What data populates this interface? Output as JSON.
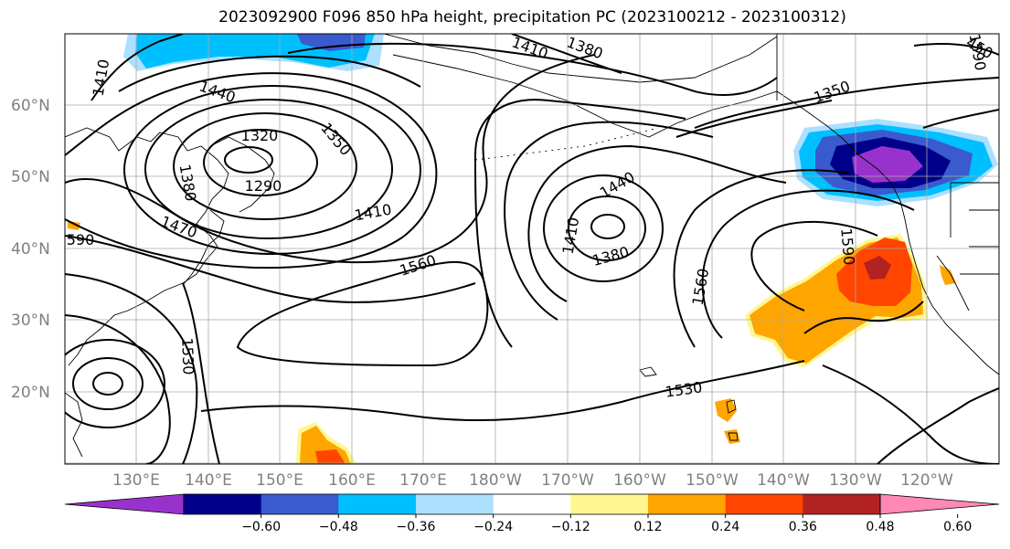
{
  "title": "2023092900 F096 850 hPa height, precipitation PC (2023100212 - 2023100312)",
  "lat_labels": [
    "60°N",
    "50°N",
    "40°N",
    "30°N",
    "20°N"
  ],
  "lon_labels": [
    "130°E",
    "140°E",
    "150°E",
    "160°E",
    "170°E",
    "180°W",
    "170°W",
    "160°W",
    "150°W",
    "140°W",
    "130°W",
    "120°W"
  ],
  "colorbar": {
    "colors": [
      "#9932CC",
      "#00008B",
      "#3A5BCD",
      "#00BFFF",
      "#ADE0FF",
      "#FFFFFF",
      "#FFF68F",
      "#FFA500",
      "#FF4500",
      "#B22222",
      "#FF88B5"
    ],
    "ticks": [
      "−0.60",
      "−0.48",
      "−0.36",
      "−0.24",
      "−0.12",
      "0.12",
      "0.24",
      "0.36",
      "0.48",
      "0.60"
    ]
  },
  "contour_labels": [
    {
      "text": "1410",
      "rot": -80
    },
    {
      "text": "1440",
      "rot": 20
    },
    {
      "text": "1410",
      "rot": 20
    },
    {
      "text": "1380",
      "rot": 20
    },
    {
      "text": "1350",
      "rot": -20
    },
    {
      "text": "1320",
      "rot": 0
    },
    {
      "text": "1350",
      "rot": 50
    },
    {
      "text": "1380",
      "rot": 80
    },
    {
      "text": "1290",
      "rot": 0
    },
    {
      "text": "1470",
      "rot": 20
    },
    {
      "text": "1410",
      "rot": -10
    },
    {
      "text": "1560",
      "rot": -18
    },
    {
      "text": "1440",
      "rot": -30
    },
    {
      "text": "1410",
      "rot": -80
    },
    {
      "text": "1380",
      "rot": -15
    },
    {
      "text": "1560",
      "rot": -80
    },
    {
      "text": "1590",
      "rot": 85
    },
    {
      "text": "1530",
      "rot": -8
    },
    {
      "text": "1530",
      "rot": 88
    },
    {
      "text": "1590",
      "rot": 80
    },
    {
      "text": "590",
      "rot": 0
    },
    {
      "text": "450",
      "rot": 30
    }
  ]
}
